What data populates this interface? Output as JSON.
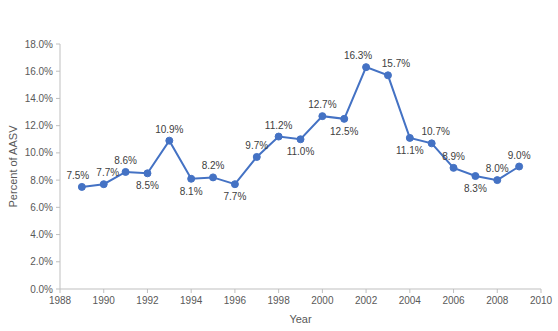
{
  "chart_data": {
    "type": "line",
    "x_label": "Year",
    "y_label": "Percent of AASV",
    "x": [
      1989,
      1990,
      1991,
      1992,
      1993,
      1994,
      1995,
      1996,
      1997,
      1998,
      1999,
      2000,
      2001,
      2002,
      2003,
      2004,
      2005,
      2006,
      2007,
      2008,
      2009
    ],
    "values": [
      7.5,
      7.7,
      8.6,
      8.5,
      10.9,
      8.1,
      8.2,
      7.7,
      9.7,
      11.2,
      11.0,
      12.7,
      12.5,
      16.3,
      15.7,
      11.1,
      10.7,
      8.9,
      8.3,
      8.0,
      9.0
    ],
    "value_labels": [
      "7.5%",
      "7.7%",
      "8.6%",
      "8.5%",
      "10.9%",
      "8.1%",
      "8.2%",
      "7.7%",
      "9.7%",
      "11.2%",
      "11.0%",
      "12.7%",
      "12.5%",
      "16.3%",
      "15.7%",
      "11.1%",
      "10.7%",
      "8.9%",
      "8.3%",
      "8.0%",
      "9.0%"
    ],
    "color": "#4472c4",
    "marker": "circle",
    "line_style": "solid",
    "data_labels": true,
    "grid": false,
    "xlim": [
      1988,
      2010
    ],
    "xticks": [
      1988,
      1990,
      1992,
      1994,
      1996,
      1998,
      2000,
      2002,
      2004,
      2006,
      2008,
      2010
    ],
    "ylim": [
      0,
      18
    ],
    "yticks": [
      {
        "value": 0,
        "label": "0.0%"
      },
      {
        "value": 2,
        "label": "2.0%"
      },
      {
        "value": 4,
        "label": "4.0%"
      },
      {
        "value": 6,
        "label": "6.0%"
      },
      {
        "value": 8,
        "label": "8.0%"
      },
      {
        "value": 10,
        "label": "10.0%"
      },
      {
        "value": 12,
        "label": "12.0%"
      },
      {
        "value": 14,
        "label": "14.0%"
      },
      {
        "value": 16,
        "label": "16.0%"
      },
      {
        "value": 18,
        "label": "18.0%"
      }
    ]
  }
}
